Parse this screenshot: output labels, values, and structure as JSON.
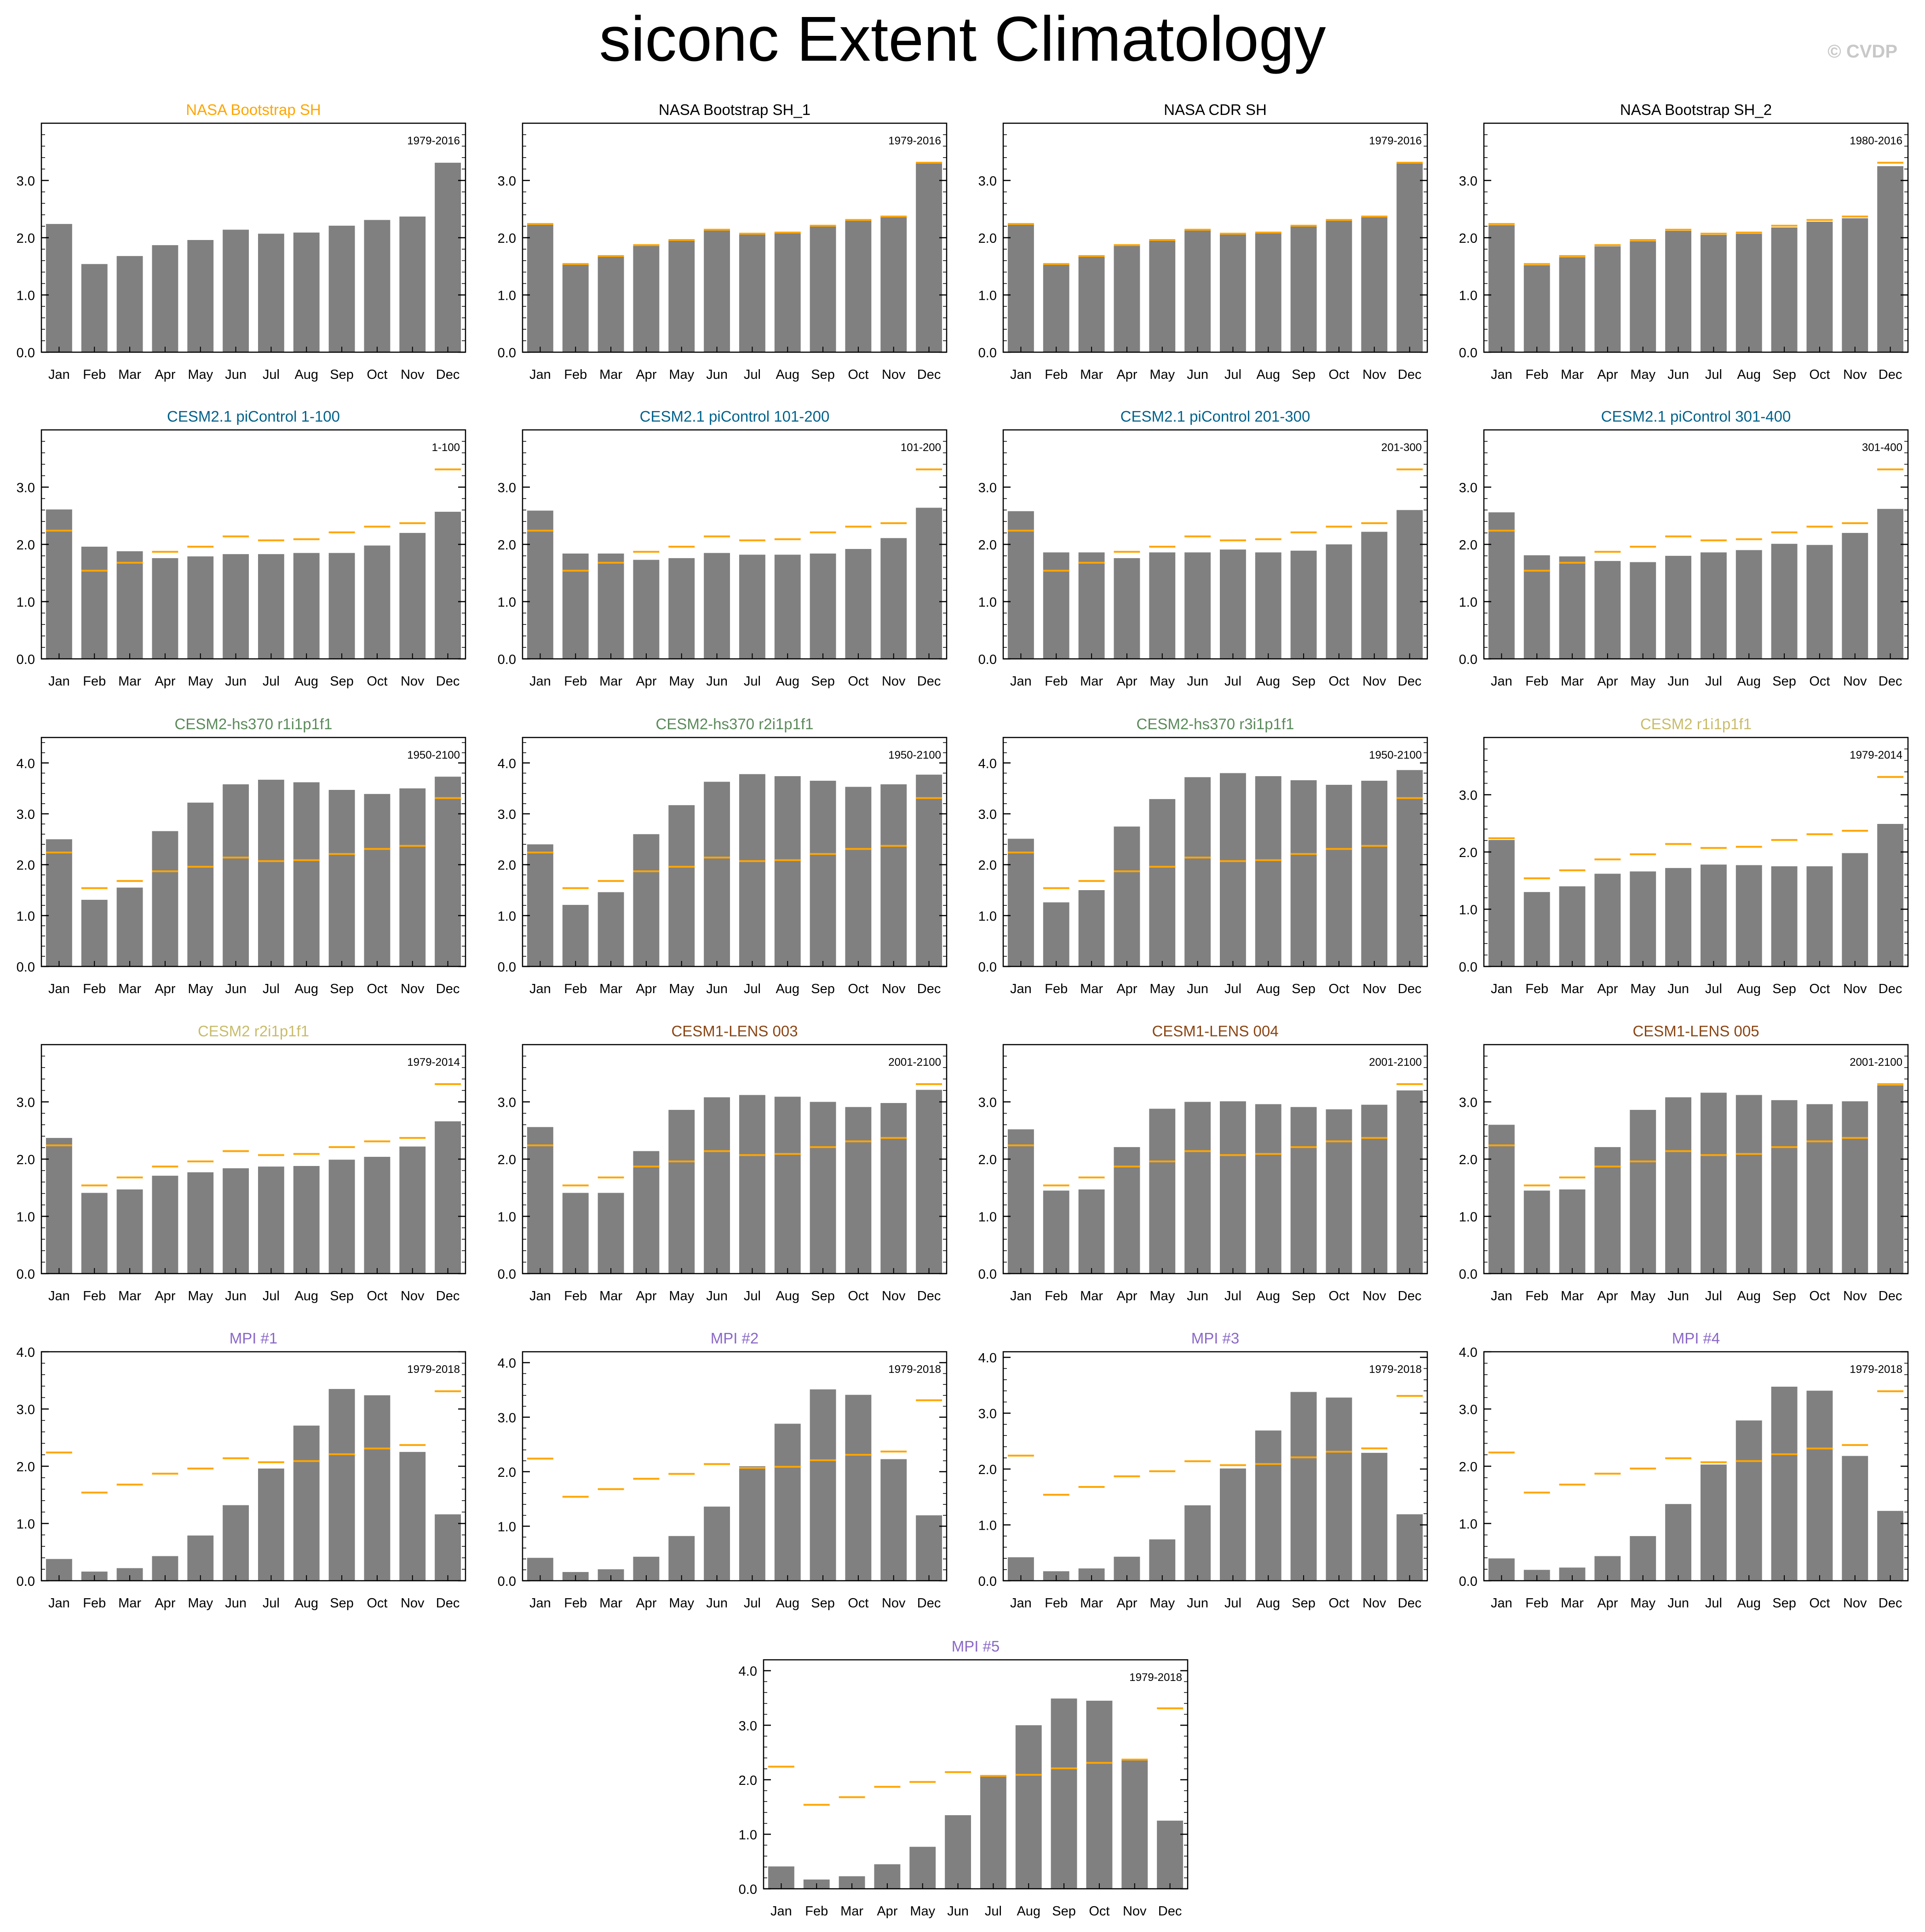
{
  "title": "siconc Extent Climatology",
  "watermark": "© CVDP",
  "colors": {
    "bar": "#808080",
    "obs_line": "#ffa500",
    "axis": "#000000",
    "title_obs": "#ffa500",
    "title_black": "#000000",
    "title_teal": "#00628b",
    "title_green": "#5b8a5b",
    "title_khaki": "#c8bc6a",
    "title_brown": "#8b4513",
    "title_purple": "#8a68c8"
  },
  "chart_data": [
    {
      "type": "bar",
      "title": "NASA Bootstrap SH",
      "title_color": "title_obs",
      "period": "1979-2016",
      "ylim": [
        0,
        4.0
      ],
      "yticks": [
        0.0,
        1.0,
        2.0,
        3.0
      ],
      "ytick_labels": [
        "0.0",
        "1.0",
        "2.0",
        "3.0"
      ],
      "show_ref": false,
      "categories": [
        "Jan",
        "Feb",
        "Mar",
        "Apr",
        "May",
        "Jun",
        "Jul",
        "Aug",
        "Sep",
        "Oct",
        "Nov",
        "Dec"
      ],
      "values": [
        2.24,
        1.54,
        1.68,
        1.87,
        1.96,
        2.14,
        2.07,
        2.09,
        2.21,
        2.31,
        2.37,
        3.31
      ]
    },
    {
      "type": "bar",
      "title": "NASA Bootstrap SH_1",
      "title_color": "title_black",
      "period": "1979-2016",
      "ylim": [
        0,
        4.0
      ],
      "yticks": [
        0.0,
        1.0,
        2.0,
        3.0
      ],
      "ytick_labels": [
        "0.0",
        "1.0",
        "2.0",
        "3.0"
      ],
      "show_ref": true,
      "categories": [
        "Jan",
        "Feb",
        "Mar",
        "Apr",
        "May",
        "Jun",
        "Jul",
        "Aug",
        "Sep",
        "Oct",
        "Nov",
        "Dec"
      ],
      "values": [
        2.24,
        1.54,
        1.68,
        1.87,
        1.96,
        2.14,
        2.07,
        2.09,
        2.21,
        2.31,
        2.37,
        3.31
      ]
    },
    {
      "type": "bar",
      "title": "NASA CDR SH",
      "title_color": "title_black",
      "period": "1979-2016",
      "ylim": [
        0,
        4.0
      ],
      "yticks": [
        0.0,
        1.0,
        2.0,
        3.0
      ],
      "ytick_labels": [
        "0.0",
        "1.0",
        "2.0",
        "3.0"
      ],
      "show_ref": true,
      "categories": [
        "Jan",
        "Feb",
        "Mar",
        "Apr",
        "May",
        "Jun",
        "Jul",
        "Aug",
        "Sep",
        "Oct",
        "Nov",
        "Dec"
      ],
      "values": [
        2.23,
        1.53,
        1.67,
        1.86,
        1.95,
        2.13,
        2.06,
        2.08,
        2.2,
        2.3,
        2.36,
        3.3
      ]
    },
    {
      "type": "bar",
      "title": "NASA Bootstrap SH_2",
      "title_color": "title_black",
      "period": "1980-2016",
      "ylim": [
        0,
        4.0
      ],
      "yticks": [
        0.0,
        1.0,
        2.0,
        3.0
      ],
      "ytick_labels": [
        "0.0",
        "1.0",
        "2.0",
        "3.0"
      ],
      "show_ref": true,
      "categories": [
        "Jan",
        "Feb",
        "Mar",
        "Apr",
        "May",
        "Jun",
        "Jul",
        "Aug",
        "Sep",
        "Oct",
        "Nov",
        "Dec"
      ],
      "values": [
        2.22,
        1.52,
        1.66,
        1.85,
        1.94,
        2.12,
        2.05,
        2.07,
        2.18,
        2.28,
        2.34,
        3.25
      ]
    },
    {
      "type": "bar",
      "title": "CESM2.1 piControl 1-100",
      "title_color": "title_teal",
      "period": "1-100",
      "ylim": [
        0,
        4.0
      ],
      "yticks": [
        0.0,
        1.0,
        2.0,
        3.0
      ],
      "ytick_labels": [
        "0.0",
        "1.0",
        "2.0",
        "3.0"
      ],
      "show_ref": true,
      "categories": [
        "Jan",
        "Feb",
        "Mar",
        "Apr",
        "May",
        "Jun",
        "Jul",
        "Aug",
        "Sep",
        "Oct",
        "Nov",
        "Dec"
      ],
      "values": [
        2.61,
        1.96,
        1.88,
        1.76,
        1.79,
        1.83,
        1.83,
        1.85,
        1.85,
        1.98,
        2.2,
        2.57
      ]
    },
    {
      "type": "bar",
      "title": "CESM2.1 piControl 101-200",
      "title_color": "title_teal",
      "period": "101-200",
      "ylim": [
        0,
        4.0
      ],
      "yticks": [
        0.0,
        1.0,
        2.0,
        3.0
      ],
      "ytick_labels": [
        "0.0",
        "1.0",
        "2.0",
        "3.0"
      ],
      "show_ref": true,
      "categories": [
        "Jan",
        "Feb",
        "Mar",
        "Apr",
        "May",
        "Jun",
        "Jul",
        "Aug",
        "Sep",
        "Oct",
        "Nov",
        "Dec"
      ],
      "values": [
        2.59,
        1.84,
        1.84,
        1.73,
        1.76,
        1.85,
        1.82,
        1.82,
        1.84,
        1.92,
        2.11,
        2.64
      ]
    },
    {
      "type": "bar",
      "title": "CESM2.1 piControl 201-300",
      "title_color": "title_teal",
      "period": "201-300",
      "ylim": [
        0,
        4.0
      ],
      "yticks": [
        0.0,
        1.0,
        2.0,
        3.0
      ],
      "ytick_labels": [
        "0.0",
        "1.0",
        "2.0",
        "3.0"
      ],
      "show_ref": true,
      "categories": [
        "Jan",
        "Feb",
        "Mar",
        "Apr",
        "May",
        "Jun",
        "Jul",
        "Aug",
        "Sep",
        "Oct",
        "Nov",
        "Dec"
      ],
      "values": [
        2.58,
        1.86,
        1.86,
        1.76,
        1.86,
        1.86,
        1.91,
        1.86,
        1.89,
        2.0,
        2.22,
        2.6
      ]
    },
    {
      "type": "bar",
      "title": "CESM2.1 piControl 301-400",
      "title_color": "title_teal",
      "period": "301-400",
      "ylim": [
        0,
        4.0
      ],
      "yticks": [
        0.0,
        1.0,
        2.0,
        3.0
      ],
      "ytick_labels": [
        "0.0",
        "1.0",
        "2.0",
        "3.0"
      ],
      "show_ref": true,
      "categories": [
        "Jan",
        "Feb",
        "Mar",
        "Apr",
        "May",
        "Jun",
        "Jul",
        "Aug",
        "Sep",
        "Oct",
        "Nov",
        "Dec"
      ],
      "values": [
        2.56,
        1.81,
        1.79,
        1.71,
        1.69,
        1.8,
        1.86,
        1.9,
        2.01,
        1.99,
        2.2,
        2.62
      ]
    },
    {
      "type": "bar",
      "title": "CESM2-hs370 r1i1p1f1",
      "title_color": "title_green",
      "period": "1950-2100",
      "ylim": [
        0,
        4.5
      ],
      "yticks": [
        0.0,
        1.0,
        2.0,
        3.0,
        4.0
      ],
      "ytick_labels": [
        "0.0",
        "1.0",
        "2.0",
        "3.0",
        "4.0"
      ],
      "show_ref": true,
      "categories": [
        "Jan",
        "Feb",
        "Mar",
        "Apr",
        "May",
        "Jun",
        "Jul",
        "Aug",
        "Sep",
        "Oct",
        "Nov",
        "Dec"
      ],
      "values": [
        2.5,
        1.31,
        1.55,
        2.66,
        3.22,
        3.58,
        3.67,
        3.62,
        3.47,
        3.39,
        3.5,
        3.73
      ]
    },
    {
      "type": "bar",
      "title": "CESM2-hs370 r2i1p1f1",
      "title_color": "title_green",
      "period": "1950-2100",
      "ylim": [
        0,
        4.5
      ],
      "yticks": [
        0.0,
        1.0,
        2.0,
        3.0,
        4.0
      ],
      "ytick_labels": [
        "0.0",
        "1.0",
        "2.0",
        "3.0",
        "4.0"
      ],
      "show_ref": true,
      "categories": [
        "Jan",
        "Feb",
        "Mar",
        "Apr",
        "May",
        "Jun",
        "Jul",
        "Aug",
        "Sep",
        "Oct",
        "Nov",
        "Dec"
      ],
      "values": [
        2.4,
        1.21,
        1.46,
        2.6,
        3.17,
        3.63,
        3.78,
        3.74,
        3.65,
        3.53,
        3.58,
        3.77
      ]
    },
    {
      "type": "bar",
      "title": "CESM2-hs370 r3i1p1f1",
      "title_color": "title_green",
      "period": "1950-2100",
      "ylim": [
        0,
        4.5
      ],
      "yticks": [
        0.0,
        1.0,
        2.0,
        3.0,
        4.0
      ],
      "ytick_labels": [
        "0.0",
        "1.0",
        "2.0",
        "3.0",
        "4.0"
      ],
      "show_ref": true,
      "categories": [
        "Jan",
        "Feb",
        "Mar",
        "Apr",
        "May",
        "Jun",
        "Jul",
        "Aug",
        "Sep",
        "Oct",
        "Nov",
        "Dec"
      ],
      "values": [
        2.51,
        1.26,
        1.5,
        2.75,
        3.29,
        3.72,
        3.8,
        3.74,
        3.66,
        3.57,
        3.65,
        3.86
      ]
    },
    {
      "type": "bar",
      "title": "CESM2 r1i1p1f1",
      "title_color": "title_khaki",
      "period": "1979-2014",
      "ylim": [
        0,
        4.0
      ],
      "yticks": [
        0.0,
        1.0,
        2.0,
        3.0
      ],
      "ytick_labels": [
        "0.0",
        "1.0",
        "2.0",
        "3.0"
      ],
      "show_ref": true,
      "categories": [
        "Jan",
        "Feb",
        "Mar",
        "Apr",
        "May",
        "Jun",
        "Jul",
        "Aug",
        "Sep",
        "Oct",
        "Nov",
        "Dec"
      ],
      "values": [
        2.21,
        1.3,
        1.4,
        1.62,
        1.66,
        1.72,
        1.78,
        1.77,
        1.75,
        1.75,
        1.98,
        2.49
      ]
    },
    {
      "type": "bar",
      "title": "CESM2 r2i1p1f1",
      "title_color": "title_khaki",
      "period": "1979-2014",
      "ylim": [
        0,
        4.0
      ],
      "yticks": [
        0.0,
        1.0,
        2.0,
        3.0
      ],
      "ytick_labels": [
        "0.0",
        "1.0",
        "2.0",
        "3.0"
      ],
      "show_ref": true,
      "categories": [
        "Jan",
        "Feb",
        "Mar",
        "Apr",
        "May",
        "Jun",
        "Jul",
        "Aug",
        "Sep",
        "Oct",
        "Nov",
        "Dec"
      ],
      "values": [
        2.37,
        1.41,
        1.47,
        1.71,
        1.77,
        1.84,
        1.87,
        1.88,
        1.99,
        2.04,
        2.22,
        2.66
      ]
    },
    {
      "type": "bar",
      "title": "CESM1-LENS 003",
      "title_color": "title_brown",
      "period": "2001-2100",
      "ylim": [
        0,
        4.0
      ],
      "yticks": [
        0.0,
        1.0,
        2.0,
        3.0
      ],
      "ytick_labels": [
        "0.0",
        "1.0",
        "2.0",
        "3.0"
      ],
      "show_ref": true,
      "categories": [
        "Jan",
        "Feb",
        "Mar",
        "Apr",
        "May",
        "Jun",
        "Jul",
        "Aug",
        "Sep",
        "Oct",
        "Nov",
        "Dec"
      ],
      "values": [
        2.56,
        1.41,
        1.41,
        2.14,
        2.86,
        3.08,
        3.12,
        3.09,
        3.0,
        2.91,
        2.98,
        3.21
      ]
    },
    {
      "type": "bar",
      "title": "CESM1-LENS 004",
      "title_color": "title_brown",
      "period": "2001-2100",
      "ylim": [
        0,
        4.0
      ],
      "yticks": [
        0.0,
        1.0,
        2.0,
        3.0
      ],
      "ytick_labels": [
        "0.0",
        "1.0",
        "2.0",
        "3.0"
      ],
      "show_ref": true,
      "categories": [
        "Jan",
        "Feb",
        "Mar",
        "Apr",
        "May",
        "Jun",
        "Jul",
        "Aug",
        "Sep",
        "Oct",
        "Nov",
        "Dec"
      ],
      "values": [
        2.52,
        1.45,
        1.47,
        2.21,
        2.88,
        3.0,
        3.01,
        2.96,
        2.91,
        2.87,
        2.95,
        3.2
      ]
    },
    {
      "type": "bar",
      "title": "CESM1-LENS 005",
      "title_color": "title_brown",
      "period": "2001-2100",
      "ylim": [
        0,
        4.0
      ],
      "yticks": [
        0.0,
        1.0,
        2.0,
        3.0
      ],
      "ytick_labels": [
        "0.0",
        "1.0",
        "2.0",
        "3.0"
      ],
      "show_ref": true,
      "categories": [
        "Jan",
        "Feb",
        "Mar",
        "Apr",
        "May",
        "Jun",
        "Jul",
        "Aug",
        "Sep",
        "Oct",
        "Nov",
        "Dec"
      ],
      "values": [
        2.6,
        1.45,
        1.47,
        2.21,
        2.86,
        3.08,
        3.16,
        3.12,
        3.03,
        2.96,
        3.01,
        3.29
      ]
    },
    {
      "type": "bar",
      "title": "MPI #1",
      "title_color": "title_purple",
      "period": "1979-2018",
      "ylim": [
        0,
        4.0
      ],
      "yticks": [
        0.0,
        1.0,
        2.0,
        3.0,
        4.0
      ],
      "ytick_labels": [
        "0.0",
        "1.0",
        "2.0",
        "3.0",
        "4.0"
      ],
      "show_ref": true,
      "categories": [
        "Jan",
        "Feb",
        "Mar",
        "Apr",
        "May",
        "Jun",
        "Jul",
        "Aug",
        "Sep",
        "Oct",
        "Nov",
        "Dec"
      ],
      "values": [
        0.38,
        0.16,
        0.22,
        0.43,
        0.79,
        1.32,
        1.96,
        2.71,
        3.35,
        3.24,
        2.25,
        1.16
      ]
    },
    {
      "type": "bar",
      "title": "MPI #2",
      "title_color": "title_purple",
      "period": "1979-2018",
      "ylim": [
        0,
        4.2
      ],
      "yticks": [
        0.0,
        1.0,
        2.0,
        3.0,
        4.0
      ],
      "ytick_labels": [
        "0.0",
        "1.0",
        "2.0",
        "3.0",
        "4.0"
      ],
      "show_ref": true,
      "categories": [
        "Jan",
        "Feb",
        "Mar",
        "Apr",
        "May",
        "Jun",
        "Jul",
        "Aug",
        "Sep",
        "Oct",
        "Nov",
        "Dec"
      ],
      "values": [
        0.42,
        0.16,
        0.21,
        0.44,
        0.82,
        1.36,
        2.1,
        2.88,
        3.51,
        3.41,
        2.23,
        1.2
      ]
    },
    {
      "type": "bar",
      "title": "MPI #3",
      "title_color": "title_purple",
      "period": "1979-2018",
      "ylim": [
        0,
        4.1
      ],
      "yticks": [
        0.0,
        1.0,
        2.0,
        3.0,
        4.0
      ],
      "ytick_labels": [
        "0.0",
        "1.0",
        "2.0",
        "3.0",
        "4.0"
      ],
      "show_ref": true,
      "categories": [
        "Jan",
        "Feb",
        "Mar",
        "Apr",
        "May",
        "Jun",
        "Jul",
        "Aug",
        "Sep",
        "Oct",
        "Nov",
        "Dec"
      ],
      "values": [
        0.42,
        0.17,
        0.22,
        0.43,
        0.74,
        1.35,
        2.01,
        2.69,
        3.38,
        3.28,
        2.29,
        1.19
      ]
    },
    {
      "type": "bar",
      "title": "MPI #4",
      "title_color": "title_purple",
      "period": "1979-2018",
      "ylim": [
        0,
        4.0
      ],
      "yticks": [
        0.0,
        1.0,
        2.0,
        3.0,
        4.0
      ],
      "ytick_labels": [
        "0.0",
        "1.0",
        "2.0",
        "3.0",
        "4.0"
      ],
      "show_ref": true,
      "categories": [
        "Jan",
        "Feb",
        "Mar",
        "Apr",
        "May",
        "Jun",
        "Jul",
        "Aug",
        "Sep",
        "Oct",
        "Nov",
        "Dec"
      ],
      "values": [
        0.39,
        0.19,
        0.23,
        0.43,
        0.78,
        1.34,
        2.03,
        2.8,
        3.39,
        3.32,
        2.18,
        1.22
      ]
    },
    {
      "type": "bar",
      "title": "MPI #5",
      "title_color": "title_purple",
      "period": "1979-2018",
      "ylim": [
        0,
        4.2
      ],
      "yticks": [
        0.0,
        1.0,
        2.0,
        3.0,
        4.0
      ],
      "ytick_labels": [
        "0.0",
        "1.0",
        "2.0",
        "3.0",
        "4.0"
      ],
      "show_ref": true,
      "categories": [
        "Jan",
        "Feb",
        "Mar",
        "Apr",
        "May",
        "Jun",
        "Jul",
        "Aug",
        "Sep",
        "Oct",
        "Nov",
        "Dec"
      ],
      "values": [
        0.41,
        0.17,
        0.23,
        0.45,
        0.77,
        1.35,
        2.08,
        3.0,
        3.49,
        3.45,
        2.36,
        1.25
      ]
    }
  ],
  "reference_values": [
    2.24,
    1.54,
    1.68,
    1.87,
    1.96,
    2.14,
    2.07,
    2.09,
    2.21,
    2.31,
    2.37,
    3.31
  ]
}
